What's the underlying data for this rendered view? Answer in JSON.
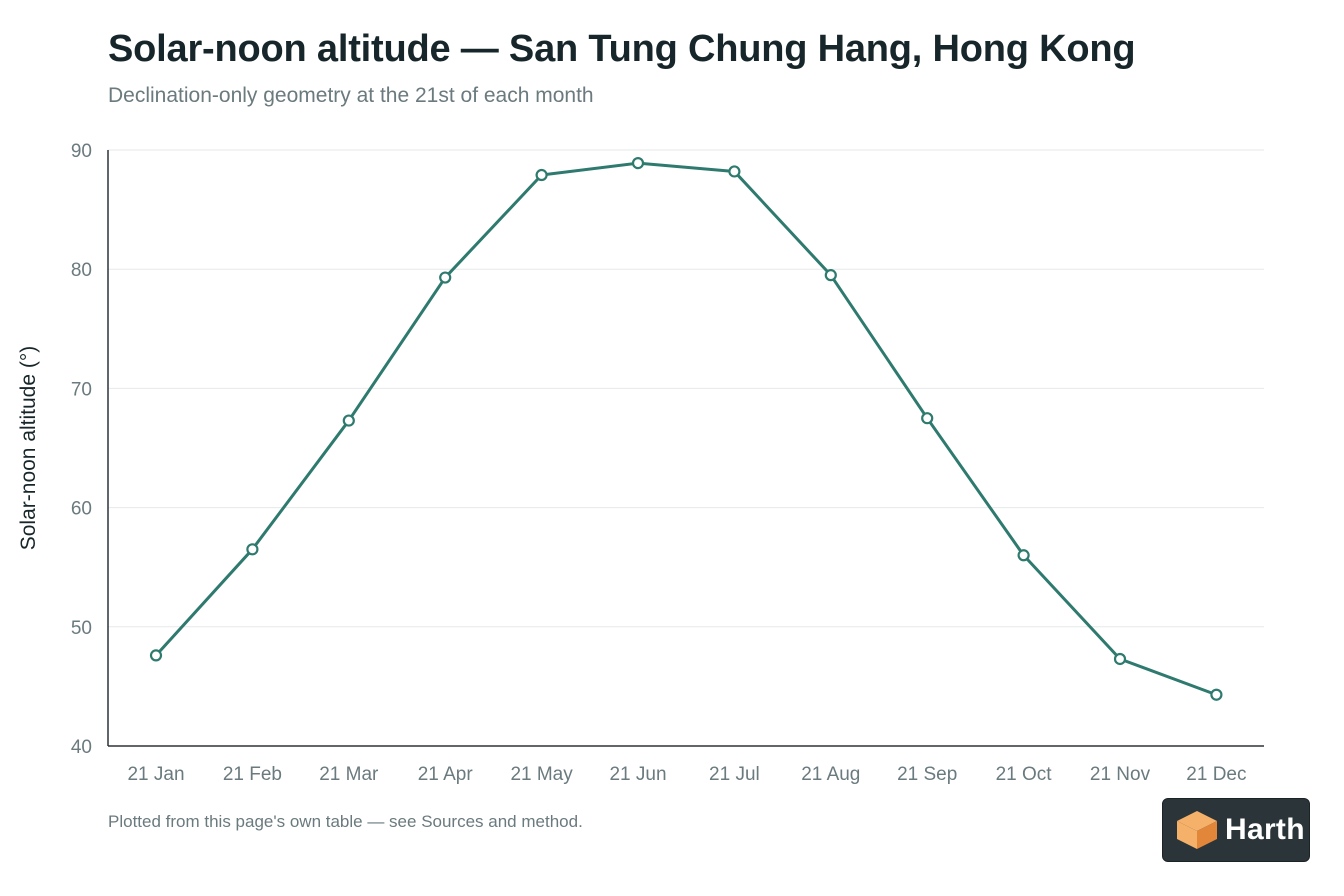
{
  "title": "Solar-noon altitude — San Tung Chung Hang, Hong Kong",
  "subtitle": "Declination-only geometry at the 21st of each month",
  "footnote": "Plotted from this page's own table — see Sources and method.",
  "brand": {
    "name": "Harth",
    "logo_icon": "cube-logo-icon",
    "colors": {
      "background": "#2b3439",
      "cube_light": "#f5b06a",
      "cube_dark": "#e2873a"
    }
  },
  "colors": {
    "line": "#2e7a6e",
    "marker_fill": "#ffffff",
    "grid": "#e6e9ea",
    "axis": "#2b3439",
    "tick_text": "#6a7a7e"
  },
  "chart_data": {
    "type": "line",
    "categories": [
      "21 Jan",
      "21 Feb",
      "21 Mar",
      "21 Apr",
      "21 May",
      "21 Jun",
      "21 Jul",
      "21 Aug",
      "21 Sep",
      "21 Oct",
      "21 Nov",
      "21 Dec"
    ],
    "series": [
      {
        "values": [
          47.6,
          56.5,
          67.3,
          79.3,
          87.9,
          88.9,
          88.2,
          79.5,
          67.5,
          56.0,
          47.3,
          44.3
        ]
      }
    ],
    "xlabel": "",
    "ylabel": "Solar-noon altitude (°)",
    "ylim": [
      40,
      90
    ],
    "yticks": [
      40,
      50,
      60,
      70,
      80,
      90
    ],
    "grid": "horizontal",
    "markers": "hollow-circle",
    "legend": "none"
  }
}
